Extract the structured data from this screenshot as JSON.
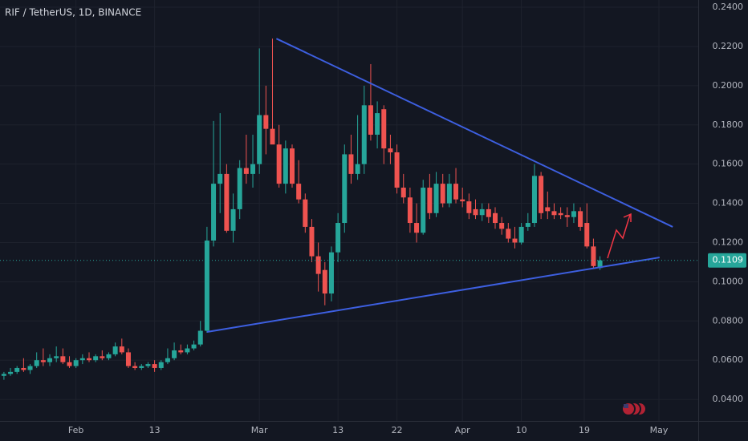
{
  "chart_data": {
    "type": "candlestick",
    "title": "RIF / TetherUS, 1D, BINANCE",
    "up_color": "#26a69a",
    "down_color": "#ef5350",
    "open": [
      0.052,
      0.053,
      0.054,
      0.056,
      0.055,
      0.057,
      0.06,
      0.059,
      0.061,
      0.062,
      0.059,
      0.057,
      0.06,
      0.061,
      0.06,
      0.062,
      0.061,
      0.063,
      0.067,
      0.064,
      0.057,
      0.056,
      0.057,
      0.058,
      0.056,
      0.059,
      0.061,
      0.065,
      0.064,
      0.066,
      0.068,
      0.075,
      0.121,
      0.15,
      0.155,
      0.126,
      0.137,
      0.158,
      0.155,
      0.16,
      0.185,
      0.178,
      0.17,
      0.15,
      0.168,
      0.15,
      0.142,
      0.128,
      0.113,
      0.106,
      0.094,
      0.115,
      0.13,
      0.165,
      0.155,
      0.16,
      0.19,
      0.175,
      0.188,
      0.168,
      0.166,
      0.148,
      0.143,
      0.13,
      0.125,
      0.148,
      0.135,
      0.15,
      0.14,
      0.15,
      0.142,
      0.141,
      0.137,
      0.134,
      0.137,
      0.135,
      0.13,
      0.127,
      0.122,
      0.12,
      0.128,
      0.13,
      0.154,
      0.138,
      0.136,
      0.135,
      0.134,
      0.133,
      0.136,
      0.13,
      0.118,
      0.107
    ],
    "high": [
      0.054,
      0.056,
      0.057,
      0.061,
      0.058,
      0.064,
      0.066,
      0.063,
      0.067,
      0.066,
      0.062,
      0.061,
      0.063,
      0.064,
      0.063,
      0.065,
      0.064,
      0.069,
      0.071,
      0.066,
      0.059,
      0.058,
      0.059,
      0.06,
      0.06,
      0.066,
      0.069,
      0.068,
      0.068,
      0.07,
      0.08,
      0.128,
      0.182,
      0.186,
      0.16,
      0.145,
      0.162,
      0.175,
      0.175,
      0.219,
      0.2,
      0.224,
      0.18,
      0.172,
      0.17,
      0.162,
      0.145,
      0.132,
      0.12,
      0.11,
      0.118,
      0.135,
      0.17,
      0.175,
      0.185,
      0.2,
      0.211,
      0.192,
      0.19,
      0.175,
      0.17,
      0.155,
      0.148,
      0.14,
      0.152,
      0.155,
      0.156,
      0.155,
      0.155,
      0.158,
      0.148,
      0.145,
      0.142,
      0.14,
      0.14,
      0.138,
      0.133,
      0.13,
      0.128,
      0.13,
      0.135,
      0.16,
      0.156,
      0.146,
      0.14,
      0.138,
      0.138,
      0.14,
      0.138,
      0.14,
      0.122,
      0.113
    ],
    "low": [
      0.05,
      0.052,
      0.053,
      0.054,
      0.053,
      0.056,
      0.057,
      0.057,
      0.059,
      0.058,
      0.056,
      0.056,
      0.058,
      0.059,
      0.059,
      0.06,
      0.06,
      0.062,
      0.063,
      0.056,
      0.055,
      0.055,
      0.056,
      0.054,
      0.055,
      0.058,
      0.06,
      0.063,
      0.063,
      0.065,
      0.067,
      0.074,
      0.118,
      0.135,
      0.125,
      0.12,
      0.132,
      0.15,
      0.148,
      0.155,
      0.165,
      0.172,
      0.148,
      0.145,
      0.148,
      0.14,
      0.125,
      0.11,
      0.095,
      0.088,
      0.09,
      0.11,
      0.125,
      0.15,
      0.152,
      0.155,
      0.172,
      0.168,
      0.16,
      0.16,
      0.145,
      0.14,
      0.125,
      0.12,
      0.124,
      0.132,
      0.133,
      0.138,
      0.138,
      0.14,
      0.138,
      0.132,
      0.132,
      0.131,
      0.13,
      0.127,
      0.124,
      0.12,
      0.117,
      0.119,
      0.126,
      0.128,
      0.132,
      0.132,
      0.132,
      0.132,
      0.128,
      0.13,
      0.126,
      0.117,
      0.107,
      0.106
    ],
    "close": [
      0.053,
      0.054,
      0.056,
      0.055,
      0.057,
      0.06,
      0.059,
      0.061,
      0.062,
      0.059,
      0.057,
      0.06,
      0.061,
      0.06,
      0.062,
      0.061,
      0.063,
      0.067,
      0.064,
      0.057,
      0.056,
      0.057,
      0.058,
      0.056,
      0.059,
      0.061,
      0.065,
      0.064,
      0.066,
      0.068,
      0.075,
      0.121,
      0.15,
      0.155,
      0.126,
      0.137,
      0.158,
      0.155,
      0.16,
      0.185,
      0.178,
      0.17,
      0.15,
      0.168,
      0.15,
      0.142,
      0.128,
      0.113,
      0.104,
      0.094,
      0.115,
      0.13,
      0.165,
      0.155,
      0.16,
      0.19,
      0.175,
      0.186,
      0.168,
      0.166,
      0.148,
      0.143,
      0.13,
      0.125,
      0.148,
      0.135,
      0.15,
      0.14,
      0.15,
      0.142,
      0.141,
      0.135,
      0.134,
      0.137,
      0.133,
      0.13,
      0.127,
      0.122,
      0.12,
      0.128,
      0.13,
      0.154,
      0.135,
      0.136,
      0.134,
      0.134,
      0.133,
      0.136,
      0.128,
      0.118,
      0.108,
      0.1109
    ],
    "last_price": 0.1109,
    "trendlines": [
      {
        "x": [
          41.6,
          102.1
        ],
        "y": [
          0.224,
          0.128
        ]
      },
      {
        "x": [
          31,
          100.1
        ],
        "y": [
          0.0744,
          0.1124
        ]
      }
    ],
    "trendline_color": "#3d5fe0",
    "xlim": [
      -0.6,
      106
    ],
    "xticks": [
      {
        "value": 11,
        "label": "Feb"
      },
      {
        "value": 23,
        "label": "13"
      },
      {
        "value": 39,
        "label": "Mar"
      },
      {
        "value": 51,
        "label": "13"
      },
      {
        "value": 60,
        "label": "22"
      },
      {
        "value": 70,
        "label": "Apr"
      },
      {
        "value": 79,
        "label": "10"
      },
      {
        "value": 88.6,
        "label": "19"
      },
      {
        "value": 100,
        "label": "May"
      }
    ],
    "ylim": [
      0.029,
      0.2437
    ],
    "yticks": [
      {
        "value": 0.24,
        "label": "0.2400"
      },
      {
        "value": 0.22,
        "label": "0.2200"
      },
      {
        "value": 0.2,
        "label": "0.2000"
      },
      {
        "value": 0.18,
        "label": "0.1800"
      },
      {
        "value": 0.16,
        "label": "0.1600"
      },
      {
        "value": 0.14,
        "label": "0.1400"
      },
      {
        "value": 0.12,
        "label": "0.1200"
      },
      {
        "value": 0.1,
        "label": "0.1000"
      },
      {
        "value": 0.08,
        "label": "0.0800"
      },
      {
        "value": 0.06,
        "label": "0.0600"
      },
      {
        "value": 0.04,
        "label": "0.0400"
      }
    ]
  }
}
